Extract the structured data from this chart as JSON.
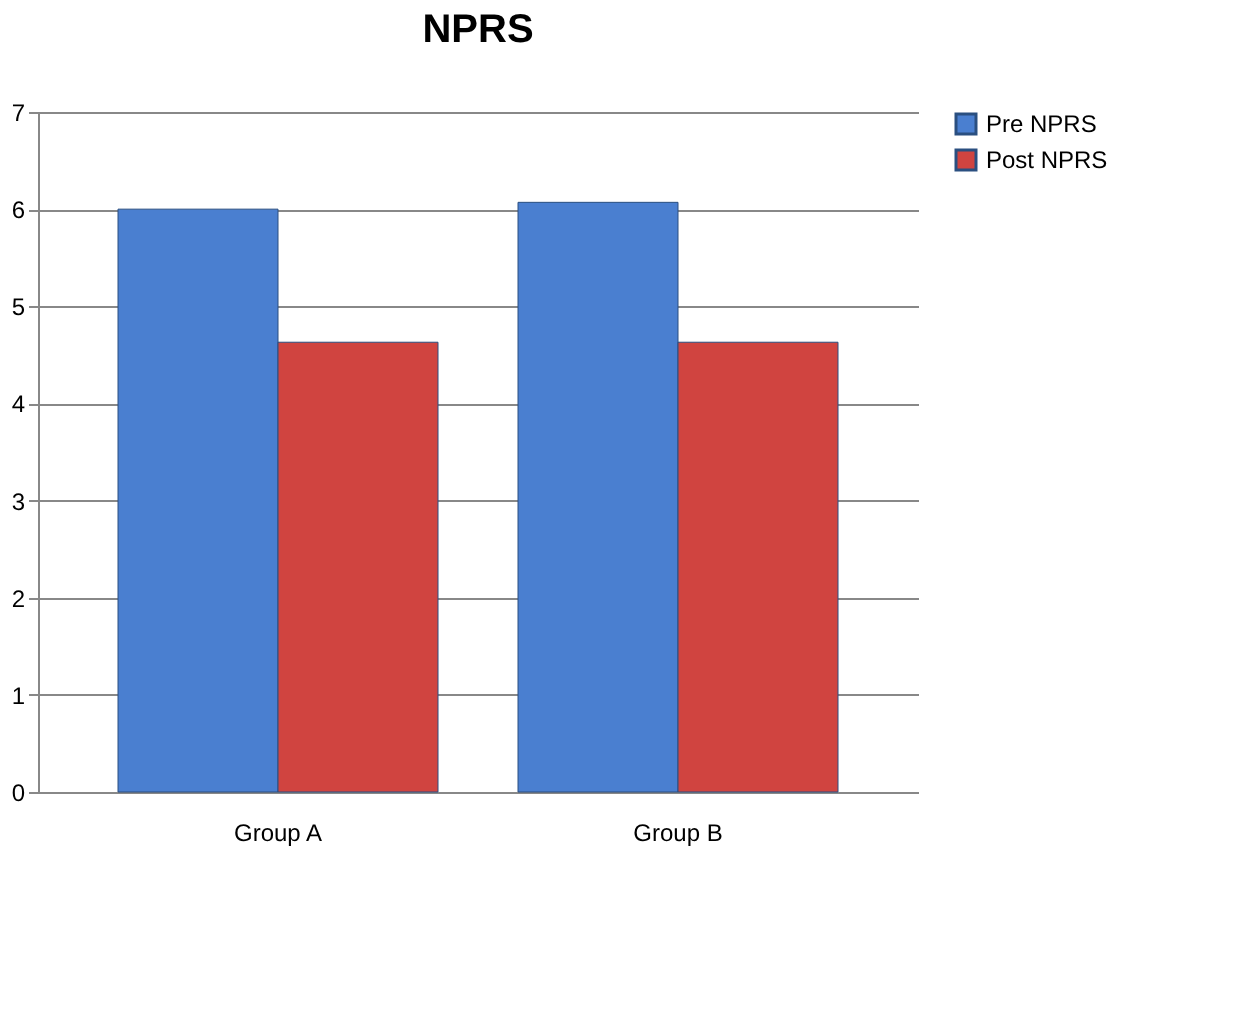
{
  "chart_data": {
    "type": "bar",
    "title": "NPRS",
    "categories": [
      "Group A",
      "Group B"
    ],
    "series": [
      {
        "name": "Pre NPRS",
        "color": "#4a7fd0",
        "values": [
          6.0,
          6.07
        ]
      },
      {
        "name": "Post NPRS",
        "color": "#d04440",
        "values": [
          4.63,
          4.63
        ]
      }
    ],
    "ylim": [
      0,
      7
    ],
    "yticks": [
      0,
      1,
      2,
      3,
      4,
      5,
      6,
      7
    ],
    "grid": "y",
    "legend": "right"
  }
}
